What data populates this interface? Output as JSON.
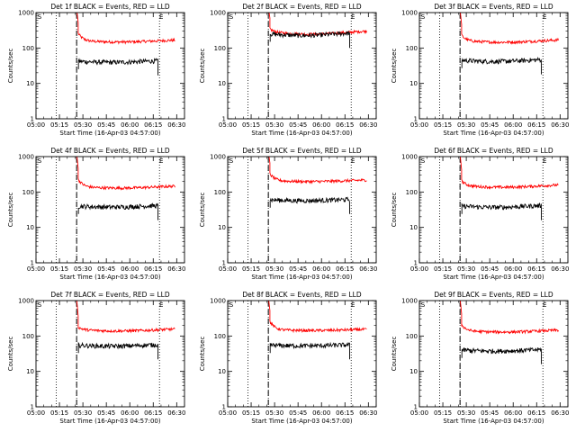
{
  "chart_data": {
    "type": "line",
    "series_colors": {
      "events": "#000000",
      "lld": "#ff0000"
    },
    "ylim": [
      1,
      1000
    ],
    "yscale": "log",
    "y_ticks": [
      "1",
      "10",
      "100",
      "1000"
    ],
    "ylabel": "Counts/sec",
    "xlabel": "Start Time (16-Apr-03 04:57:00)",
    "xlim": [
      "05:00",
      "06:35"
    ],
    "x_ticks": [
      "05:00",
      "05:15",
      "05:30",
      "05:45",
      "06:00",
      "06:15",
      "06:30"
    ],
    "dotted_lines_at": [
      "05:13",
      "05:26"
    ],
    "dashed_line_at": "05:26",
    "marker_labels": {
      "start": "S",
      "end": "E"
    },
    "start_marker_at": "05:00",
    "end_marker_at": "06:19",
    "panels": [
      {
        "title": "Det 1f BLACK = Events, RED = LLD",
        "lld_level": 160,
        "events_level": 42,
        "lld_start": 260,
        "dip": 0.5
      },
      {
        "title": "Det 2f BLACK = Events, RED = LLD",
        "lld_level": 280,
        "events_level": 250,
        "lld_start": 350,
        "dip": 0.8
      },
      {
        "title": "Det 3f BLACK = Events, RED = LLD",
        "lld_level": 160,
        "events_level": 45,
        "lld_start": 230,
        "dip": 0.6
      },
      {
        "title": "Det 4f BLACK = Events, RED = LLD",
        "lld_level": 140,
        "events_level": 40,
        "lld_start": 230,
        "dip": 0.5
      },
      {
        "title": "Det 5f BLACK = Events, RED = LLD",
        "lld_level": 210,
        "events_level": 60,
        "lld_start": 330,
        "dip": 0.4
      },
      {
        "title": "Det 6f BLACK = Events, RED = LLD",
        "lld_level": 150,
        "events_level": 40,
        "lld_start": 210,
        "dip": 0.6
      },
      {
        "title": "Det 7f BLACK = Events, RED = LLD",
        "lld_level": 150,
        "events_level": 55,
        "lld_start": 180,
        "dip": 0.5
      },
      {
        "title": "Det 8f BLACK = Events, RED = LLD",
        "lld_level": 150,
        "events_level": 55,
        "lld_start": 260,
        "dip": 0.3
      },
      {
        "title": "Det 9f BLACK = Events, RED = LLD",
        "lld_level": 140,
        "events_level": 40,
        "lld_start": 210,
        "dip": 0.5
      }
    ]
  }
}
